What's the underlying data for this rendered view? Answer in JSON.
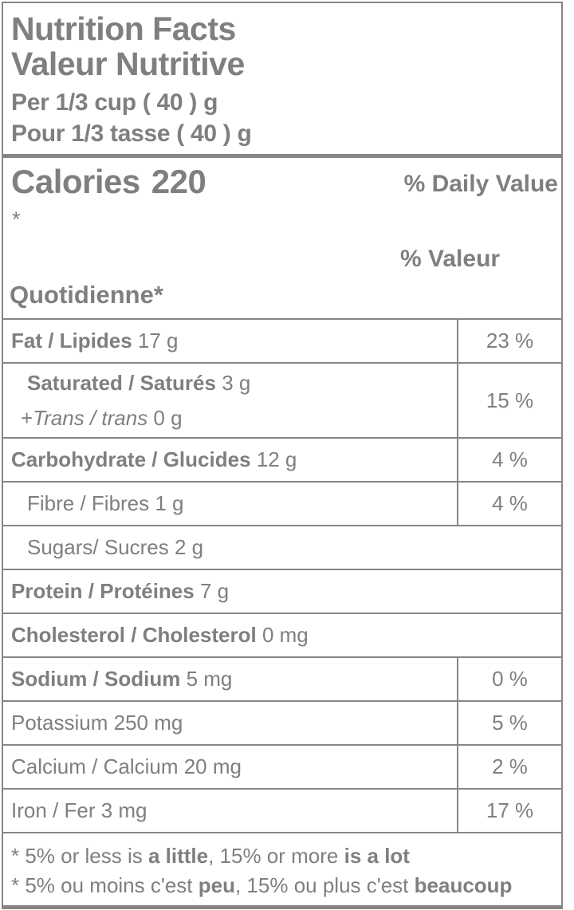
{
  "header": {
    "title_en": "Nutrition Facts",
    "title_fr": "Valeur Nutritive",
    "serving_en": "Per 1/3 cup ( 40 ) g",
    "serving_fr": "Pour 1/3 tasse ( 40 ) g"
  },
  "calories": {
    "label": "Calories",
    "value": "220",
    "daily_value_en": "% Daily Value",
    "footnote_marker": "*",
    "daily_value_fr_line1": "% Valeur",
    "daily_value_fr_line2": "Quotidienne*"
  },
  "rows": [
    {
      "bold": "Fat / Lipides",
      "amount": " 17 g",
      "percent": "23 %"
    },
    {
      "bold": "Saturated / Saturés",
      "amount": " 3 g",
      "sub_prefix": "+",
      "sub_italic": "Trans / trans",
      "sub_amount": " 0 g",
      "percent": "15 %"
    },
    {
      "bold": "Carbohydrate / Glucides",
      "amount": " 12 g",
      "percent": "4 %"
    },
    {
      "regular": "Fibre / Fibres 1 g",
      "percent": "4 %"
    },
    {
      "regular": "Sugars/ Sucres 2 g"
    },
    {
      "bold": "Protein / Protéines",
      "amount": " 7 g"
    },
    {
      "bold": "Cholesterol / Cholesterol",
      "amount": " 0 mg"
    },
    {
      "bold": "Sodium / Sodium",
      "amount": " 5 mg",
      "percent": "0 %"
    },
    {
      "regular": "Potassium 250 mg",
      "percent": "5 %"
    },
    {
      "regular": "Calcium / Calcium 20 mg",
      "percent": "2 %"
    },
    {
      "regular": "Iron / Fer 3 mg",
      "percent": "17 %"
    }
  ],
  "footnotes": {
    "en": {
      "p1": "* 5% or less is ",
      "b1": "a little",
      "p2": ", 15% or more ",
      "b2": "is a lot"
    },
    "fr": {
      "p1": "* 5% ou moins c'est ",
      "b1": "peu",
      "p2": ", 15% ou plus c'est ",
      "b2": "beaucoup"
    }
  },
  "colors": {
    "text": "#7f7f7f",
    "line": "#868686"
  }
}
